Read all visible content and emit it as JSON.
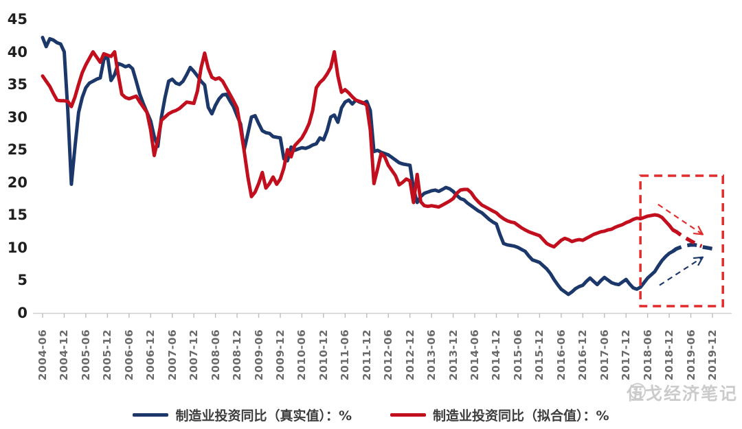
{
  "chart_data": {
    "type": "line",
    "title": "",
    "ylabel": "%",
    "ylim": [
      0,
      45
    ],
    "grid": false,
    "legend_position": "bottom",
    "y_ticks": [
      45,
      40,
      35,
      30,
      25,
      20,
      15,
      10,
      5,
      0
    ],
    "x_start": "2004-06",
    "x_end": "2019-12",
    "x_tick_labels": [
      "2004-06",
      "2004-12",
      "2005-06",
      "2005-12",
      "2006-06",
      "2006-12",
      "2007-06",
      "2007-12",
      "2008-06",
      "2008-12",
      "2009-06",
      "2009-12",
      "2010-06",
      "2010-12",
      "2011-06",
      "2011-12",
      "2012-06",
      "2012-12",
      "2013-06",
      "2013-12",
      "2014-06",
      "2014-12",
      "2015-06",
      "2015-12",
      "2016-06",
      "2016-12",
      "2017-06",
      "2017-12",
      "2018-06",
      "2018-12",
      "2019-06",
      "2019-12"
    ],
    "series": [
      {
        "name": "制造业投资同比（真实值）：%",
        "color": "#1c386b",
        "dash_from_index": 175,
        "values": [
          42.2,
          40.8,
          42.0,
          41.8,
          41.4,
          41.2,
          40.0,
          31.0,
          19.7,
          25.5,
          30.7,
          33.0,
          34.5,
          35.2,
          35.5,
          35.8,
          36.0,
          38.8,
          39.4,
          35.6,
          36.5,
          38.2,
          38.0,
          37.7,
          37.9,
          37.4,
          35.5,
          33.5,
          32.0,
          30.7,
          29.4,
          27.0,
          25.5,
          30.0,
          33.0,
          35.5,
          35.8,
          35.2,
          35.0,
          35.5,
          36.5,
          37.6,
          37.0,
          36.3,
          35.5,
          34.9,
          31.5,
          30.5,
          31.8,
          32.8,
          33.4,
          33.5,
          32.5,
          31.6,
          30.2,
          28.9,
          25.0,
          27.5,
          30.0,
          30.2,
          29.0,
          27.9,
          27.6,
          27.5,
          27.0,
          26.9,
          26.8,
          23.6,
          23.3,
          25.4,
          24.9,
          25.1,
          25.3,
          25.2,
          25.4,
          25.7,
          25.9,
          26.8,
          26.5,
          27.9,
          30.0,
          30.3,
          29.2,
          31.4,
          32.3,
          32.6,
          32.0,
          32.6,
          32.3,
          32.1,
          32.4,
          31.0,
          24.7,
          24.9,
          24.6,
          24.4,
          24.2,
          23.8,
          23.4,
          23.0,
          22.8,
          22.7,
          22.6,
          19.0,
          16.9,
          17.8,
          18.3,
          18.5,
          18.7,
          18.8,
          18.6,
          18.9,
          19.2,
          19.0,
          18.6,
          18.0,
          17.5,
          17.3,
          16.8,
          16.4,
          16.0,
          15.6,
          15.3,
          14.8,
          14.3,
          13.9,
          13.6,
          12.0,
          10.6,
          10.4,
          10.3,
          10.2,
          10.0,
          9.7,
          9.4,
          8.7,
          8.1,
          7.9,
          7.7,
          7.2,
          6.7,
          6.0,
          5.1,
          4.3,
          3.6,
          3.2,
          2.8,
          3.2,
          3.7,
          4.0,
          4.2,
          4.8,
          5.3,
          4.8,
          4.3,
          4.9,
          5.4,
          5.0,
          4.6,
          4.4,
          4.3,
          4.7,
          5.1,
          4.4,
          3.8,
          3.6,
          3.9,
          4.6,
          5.3,
          5.8,
          6.3,
          7.2,
          8.0,
          8.6,
          9.1,
          9.4,
          9.8,
          10.0,
          10.2,
          10.3,
          10.4,
          10.4,
          10.3,
          10.1,
          10.0,
          9.9,
          9.8
        ]
      },
      {
        "name": "制造业投资同比（拟合值）：%",
        "color": "#c20f1e",
        "dash_from_index": 175,
        "values": [
          36.3,
          35.5,
          34.7,
          33.6,
          32.6,
          32.5,
          32.5,
          32.4,
          31.6,
          33.1,
          35.0,
          36.8,
          38.0,
          39.0,
          40.0,
          39.2,
          38.4,
          39.7,
          39.5,
          39.3,
          40.0,
          36.5,
          33.5,
          33.0,
          32.8,
          33.0,
          33.2,
          32.3,
          31.5,
          30.7,
          28.0,
          24.1,
          26.5,
          29.5,
          30.0,
          30.5,
          30.8,
          31.0,
          31.3,
          31.8,
          32.3,
          32.2,
          32.1,
          34.0,
          37.5,
          39.8,
          37.5,
          36.1,
          35.8,
          36.0,
          35.5,
          34.5,
          33.5,
          32.5,
          31.4,
          28.2,
          24.7,
          20.8,
          17.8,
          18.5,
          19.8,
          21.5,
          19.1,
          19.8,
          20.8,
          19.7,
          20.5,
          22.2,
          25.0,
          23.9,
          25.6,
          26.2,
          26.8,
          27.8,
          29.0,
          31.0,
          34.5,
          35.3,
          35.8,
          36.6,
          37.6,
          40.0,
          36.3,
          33.8,
          34.2,
          33.7,
          33.1,
          32.6,
          32.4,
          32.2,
          31.8,
          28.0,
          19.8,
          22.0,
          24.4,
          23.9,
          22.6,
          21.8,
          21.0,
          19.6,
          20.0,
          20.5,
          20.2,
          16.9,
          21.2,
          17.0,
          16.4,
          16.3,
          16.4,
          16.3,
          16.2,
          16.5,
          16.8,
          17.1,
          17.5,
          18.3,
          18.8,
          18.9,
          18.9,
          18.4,
          17.6,
          17.0,
          16.5,
          16.2,
          15.9,
          15.6,
          15.3,
          14.8,
          14.4,
          14.1,
          13.9,
          13.8,
          13.4,
          13.0,
          12.7,
          12.4,
          12.2,
          12.0,
          11.8,
          11.2,
          10.6,
          10.3,
          10.1,
          10.6,
          11.1,
          11.4,
          11.2,
          10.9,
          11.1,
          11.2,
          11.1,
          11.4,
          11.7,
          12.0,
          12.2,
          12.4,
          12.5,
          12.7,
          12.8,
          13.1,
          13.3,
          13.5,
          13.8,
          14.0,
          14.3,
          14.5,
          14.4,
          14.6,
          14.8,
          14.9,
          15.0,
          14.9,
          14.6,
          14.0,
          13.4,
          12.7,
          12.4,
          12.0,
          11.6,
          11.3,
          11.0,
          10.7,
          10.4,
          10.2,
          null,
          null,
          null
        ]
      }
    ],
    "annotations": {
      "highlight_box": {
        "color": "#e02c2c",
        "from_index": 166,
        "to_index": 188.9,
        "top_value": 21.0,
        "bottom_value": 1.0
      },
      "arrows": [
        {
          "name": "fitted-forecast-arrow",
          "color": "#e02c2c",
          "from": {
            "index": 170.9,
            "value": 16.6
          },
          "to": {
            "index": 183.3,
            "value": 12.0
          },
          "direction": "down-right"
        },
        {
          "name": "actual-forecast-arrow",
          "color": "#1c386b",
          "from": {
            "index": 171.3,
            "value": 4.2
          },
          "to": {
            "index": 183.3,
            "value": 8.5
          },
          "direction": "up-right"
        }
      ]
    },
    "axis": {
      "color": "#cfcfcf",
      "tick_color": "#bdbdbd"
    }
  },
  "legend": {
    "items": [
      {
        "label": "制造业投资同比（真实值）：%",
        "color": "#1c386b"
      },
      {
        "label": "制造业投资同比（拟合值）：%",
        "color": "#c20f1e"
      }
    ]
  },
  "watermark": {
    "text": "伍戈经济笔记"
  }
}
